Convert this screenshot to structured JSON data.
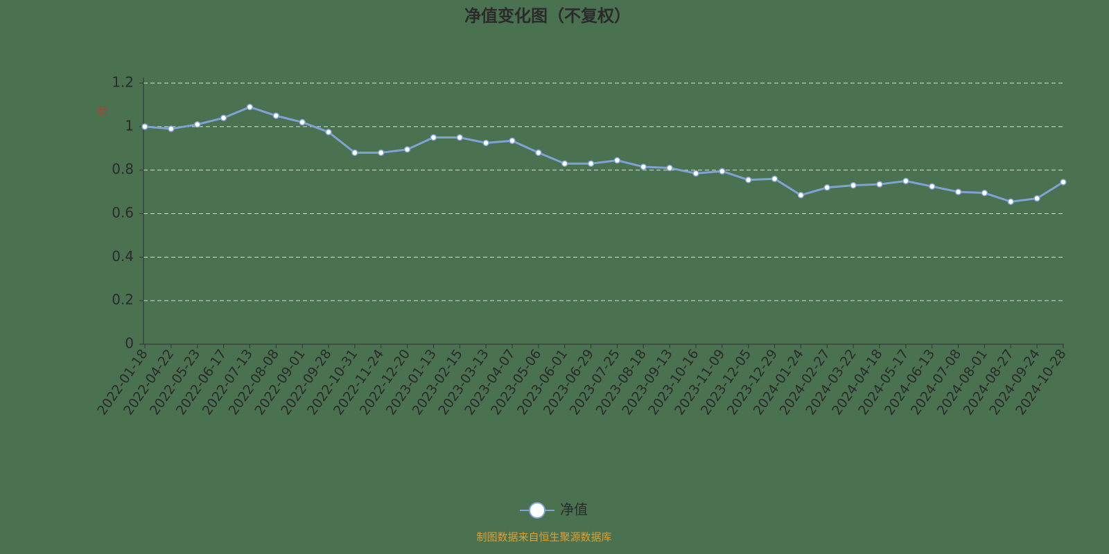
{
  "chart_data": {
    "type": "line",
    "title": "净值变化图（不复权）",
    "y_label": "元",
    "categories": [
      "2022-01-18",
      "2022-04-22",
      "2022-05-23",
      "2022-06-17",
      "2022-07-13",
      "2022-08-08",
      "2022-09-01",
      "2022-09-28",
      "2022-10-31",
      "2022-11-24",
      "2022-12-20",
      "2023-01-13",
      "2023-02-15",
      "2023-03-13",
      "2023-04-07",
      "2023-05-06",
      "2023-06-01",
      "2023-06-29",
      "2023-07-25",
      "2023-08-18",
      "2023-09-13",
      "2023-10-16",
      "2023-11-09",
      "2023-12-05",
      "2023-12-29",
      "2024-01-24",
      "2024-02-27",
      "2024-03-22",
      "2024-04-18",
      "2024-05-17",
      "2024-06-13",
      "2024-07-08",
      "2024-08-01",
      "2024-08-27",
      "2024-09-24",
      "2024-10-28"
    ],
    "series": [
      {
        "name": "净值",
        "color": "#7fa3d4",
        "values": [
          1.0,
          0.99,
          1.01,
          1.04,
          1.09,
          1.05,
          1.02,
          0.975,
          0.88,
          0.88,
          0.895,
          0.95,
          0.95,
          0.925,
          0.935,
          0.88,
          0.83,
          0.83,
          0.845,
          0.815,
          0.81,
          0.785,
          0.795,
          0.755,
          0.76,
          0.685,
          0.72,
          0.73,
          0.735,
          0.75,
          0.725,
          0.7,
          0.695,
          0.655,
          0.67,
          0.745
        ]
      }
    ],
    "ylim": [
      0,
      1.2
    ],
    "yticks": [
      0,
      0.2,
      0.4,
      0.6,
      0.8,
      1,
      1.2
    ],
    "grid": true,
    "footer": "制图数据来自恒生聚源数据库"
  }
}
